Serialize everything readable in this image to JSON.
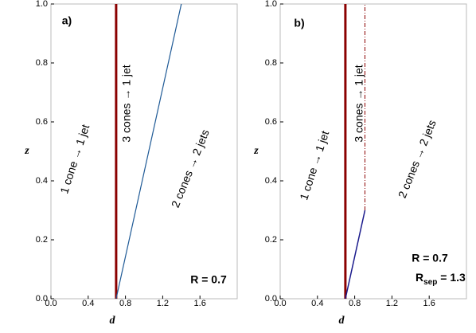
{
  "chart_data": [
    {
      "type": "line",
      "xlabel": "d",
      "ylabel": "z",
      "panel_label": "a)",
      "xlim": [
        0,
        2
      ],
      "xticks": [
        {
          "value": 0,
          "label": "0.0"
        },
        0.4,
        0.8,
        1.2,
        1.6
      ],
      "ylim": [
        0,
        1
      ],
      "yticks": [
        {
          "value": 0,
          "label": "0.0"
        },
        0.2,
        0.4,
        0.6,
        0.8,
        {
          "value": 1,
          "label": "1.0"
        }
      ],
      "series": [
        {
          "color": "#8b0000",
          "x": [
            0.7,
            0.7
          ],
          "values": [
            0,
            1
          ],
          "width": 3
        },
        {
          "color": "#1f5a96",
          "x": [
            0.7,
            1.4
          ],
          "values": [
            0,
            1
          ],
          "width": 1.2
        }
      ],
      "annotations": [
        "1 cone → 1 jet",
        "3 cones → 1 jet",
        "2 cones → 2 jets",
        "R = 0.7"
      ]
    },
    {
      "type": "line",
      "xlabel": "d",
      "ylabel": "z",
      "panel_label": "b)",
      "xlim": [
        0,
        2
      ],
      "xticks": [
        {
          "value": 0,
          "label": "0.0"
        },
        0.4,
        0.8,
        1.2,
        1.6
      ],
      "ylim": [
        0,
        1
      ],
      "yticks": [
        {
          "value": 0,
          "label": "0.0"
        },
        0.2,
        0.4,
        0.6,
        0.8,
        {
          "value": 1,
          "label": "1.0"
        }
      ],
      "series": [
        {
          "color": "#8b0000",
          "x": [
            0.7,
            0.7
          ],
          "values": [
            0,
            1
          ],
          "width": 3
        },
        {
          "color": "#1a1a8c",
          "x": [
            0.7,
            0.91
          ],
          "values": [
            0,
            0.3
          ],
          "width": 1.5
        },
        {
          "color": "#8b0000",
          "x": [
            0.91,
            0.91
          ],
          "values": [
            0.3,
            1
          ],
          "width": 1,
          "dashed": true
        }
      ],
      "annotations": [
        "1 cone → 1 jet",
        "3 cones → 1 jet",
        "2 cones → 2 jets",
        "R = 0.7"
      ],
      "rsep": {
        "base": "R",
        "sub": "sep",
        "rest": " = 1.3"
      }
    }
  ]
}
